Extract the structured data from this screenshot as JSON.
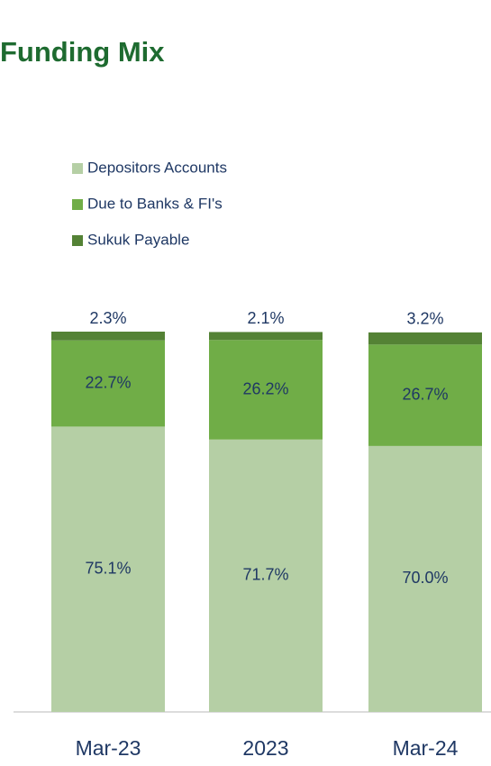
{
  "chart_data": {
    "type": "stacked-bar",
    "title": "Funding Mix",
    "categories": [
      "Mar-23",
      "2023",
      "Mar-24"
    ],
    "series": [
      {
        "name": "Depositors Accounts",
        "color": "#b5cfa5",
        "values": [
          75.1,
          71.7,
          70.0
        ],
        "value_labels": [
          "75.1%",
          "71.7%",
          "70.0%"
        ]
      },
      {
        "name": "Due to Banks & FI's",
        "color": "#70ad47",
        "values": [
          22.7,
          26.2,
          26.7
        ],
        "value_labels": [
          "22.7%",
          "26.2%",
          "26.7%"
        ]
      },
      {
        "name": "Sukuk Payable",
        "color": "#548235",
        "values": [
          2.3,
          2.1,
          3.2
        ],
        "value_labels": [
          "2.3%",
          "2.1%",
          "3.2%"
        ]
      }
    ]
  }
}
